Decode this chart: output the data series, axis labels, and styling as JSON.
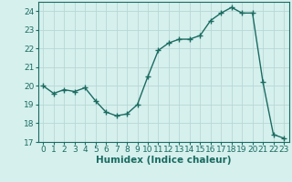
{
  "x": [
    0,
    1,
    2,
    3,
    4,
    5,
    6,
    7,
    8,
    9,
    10,
    11,
    12,
    13,
    14,
    15,
    16,
    17,
    18,
    19,
    20,
    21,
    22,
    23
  ],
  "y": [
    20.0,
    19.6,
    19.8,
    19.7,
    19.9,
    19.2,
    18.6,
    18.4,
    18.5,
    19.0,
    20.5,
    21.9,
    22.3,
    22.5,
    22.5,
    22.7,
    23.5,
    23.9,
    24.2,
    23.9,
    23.9,
    20.2,
    17.4,
    17.2
  ],
  "line_color": "#1a6b60",
  "marker": "+",
  "marker_size": 4,
  "bg_color": "#d6f0ee",
  "grid_color": "#b8d8d4",
  "xlabel": "Humidex (Indice chaleur)",
  "ylim": [
    17,
    24.5
  ],
  "xlim": [
    -0.5,
    23.5
  ],
  "yticks": [
    17,
    18,
    19,
    20,
    21,
    22,
    23,
    24
  ],
  "xticks": [
    0,
    1,
    2,
    3,
    4,
    5,
    6,
    7,
    8,
    9,
    10,
    11,
    12,
    13,
    14,
    15,
    16,
    17,
    18,
    19,
    20,
    21,
    22,
    23
  ],
  "tick_label_fontsize": 6.5,
  "xlabel_fontsize": 7.5,
  "line_width": 1.0
}
